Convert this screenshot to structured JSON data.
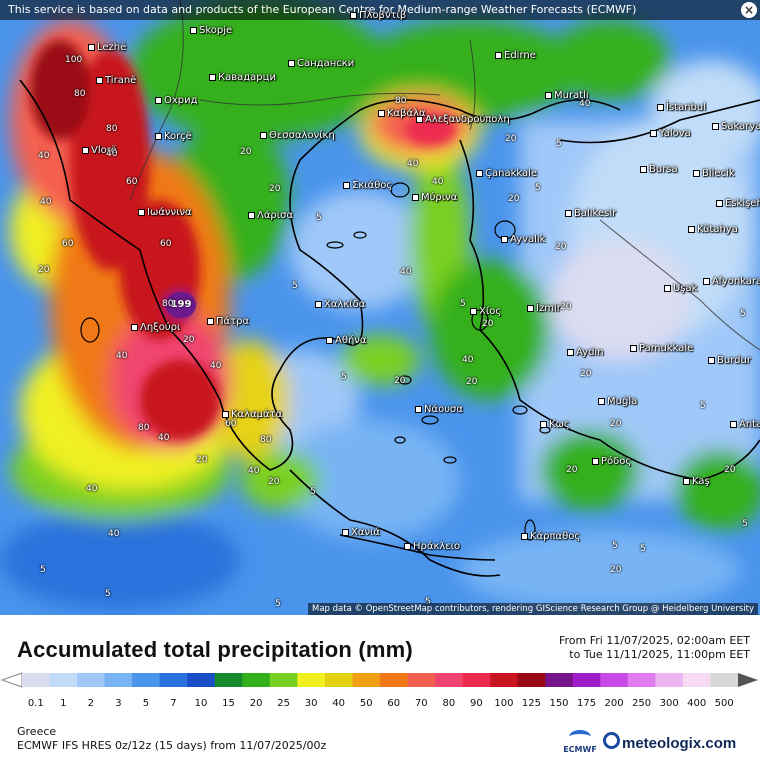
{
  "notice": {
    "text": "This service is based on data and products of the European Centre for Medium-range Weather Forecasts (ECMWF)",
    "close": "×"
  },
  "attribution": "Map data © OpenStreetMap contributors, rendering GIScience Research Group @ Heidelberg University",
  "max_value": "199",
  "places": [
    {
      "name": "Lezhë"
    },
    {
      "name": "Skopje"
    },
    {
      "name": "Tiranë"
    },
    {
      "name": "Кавадарци"
    },
    {
      "name": "Сандански"
    },
    {
      "name": "Edirne"
    },
    {
      "name": "Охрид"
    },
    {
      "name": "Muratlı"
    },
    {
      "name": "İstanbul"
    },
    {
      "name": "Καβάλα"
    },
    {
      "name": "Αλεξανδρούπολη"
    },
    {
      "name": "Korçë"
    },
    {
      "name": "Θεσσαλονίκη"
    },
    {
      "name": "Yalova"
    },
    {
      "name": "Sakarya"
    },
    {
      "name": "Vlorë"
    },
    {
      "name": "Çanakkale"
    },
    {
      "name": "Bursa"
    },
    {
      "name": "Bilecik"
    },
    {
      "name": "Σκιάθος"
    },
    {
      "name": "Μύρινα"
    },
    {
      "name": "Ιωάννινα"
    },
    {
      "name": "Λάρισα"
    },
    {
      "name": "Balıkesir"
    },
    {
      "name": "Eskişehir"
    },
    {
      "name": "Kütahya"
    },
    {
      "name": "Ayvalık"
    },
    {
      "name": "Uşak"
    },
    {
      "name": "Afyonkarahisar"
    },
    {
      "name": "Χαλκίδα"
    },
    {
      "name": "İzmir"
    },
    {
      "name": "Πάτρα"
    },
    {
      "name": "Ληξούρι"
    },
    {
      "name": "Χίος"
    },
    {
      "name": "Αθήνα"
    },
    {
      "name": "Aydın"
    },
    {
      "name": "Pamukkale"
    },
    {
      "name": "Burdur"
    },
    {
      "name": "Muğla"
    },
    {
      "name": "Νάουσα"
    },
    {
      "name": "Καλαμάτα"
    },
    {
      "name": "Κως"
    },
    {
      "name": "Antalya"
    },
    {
      "name": "Ρόδος"
    },
    {
      "name": "Kaş"
    },
    {
      "name": "Χανιά"
    },
    {
      "name": "Ηράκλειο"
    },
    {
      "name": "Κάρπαθος"
    },
    {
      "name": "Πλοβντίβ"
    }
  ],
  "contour_values": [
    "100",
    "80",
    "80",
    "40",
    "60",
    "40",
    "20",
    "20",
    "60",
    "80",
    "20",
    "40",
    "40",
    "80",
    "40",
    "60",
    "80",
    "40",
    "20",
    "5",
    "20",
    "40",
    "80",
    "20",
    "40",
    "5",
    "20",
    "5",
    "20",
    "20",
    "5",
    "40",
    "40",
    "20",
    "60",
    "40",
    "20",
    "40",
    "20",
    "40",
    "5",
    "5",
    "5",
    "5",
    "5",
    "20",
    "5",
    "5",
    "5",
    "20",
    "5",
    "5",
    "20",
    "20",
    "20",
    "5",
    "40",
    "20",
    "5"
  ],
  "footer": {
    "title": "Accumulated total precipitation (mm)",
    "from": "From Fri 11/07/2025, 02:00am EET",
    "to": "to Tue 11/11/2025, 11:00pm EET",
    "region": "Greece",
    "model": "ECMWF IFS HRES 0z/12z (15 days) from  11/07/2025/00z",
    "ecmwf_logo": "ECMWF",
    "brand": "meteologix.com"
  },
  "legend": {
    "ticks": [
      "0.1",
      "1",
      "2",
      "3",
      "5",
      "7",
      "10",
      "15",
      "20",
      "25",
      "30",
      "40",
      "50",
      "60",
      "70",
      "80",
      "90",
      "100",
      "125",
      "150",
      "175",
      "200",
      "250",
      "300",
      "400",
      "500"
    ],
    "colors": [
      "#dcdcf0",
      "#c0dcf8",
      "#a0c8f8",
      "#78b4f4",
      "#4a94ec",
      "#2a72dc",
      "#1a4ec8",
      "#148a2c",
      "#34b01c",
      "#7ad020",
      "#f0f020",
      "#e6d214",
      "#f0a014",
      "#f07814",
      "#f46050",
      "#f04470",
      "#ec2a50",
      "#c8141e",
      "#9a0a14",
      "#78148a",
      "#a01cc8",
      "#c84ae8",
      "#e07cf0",
      "#ecb4f0",
      "#f6daf4",
      "#d8d8d8"
    ]
  }
}
